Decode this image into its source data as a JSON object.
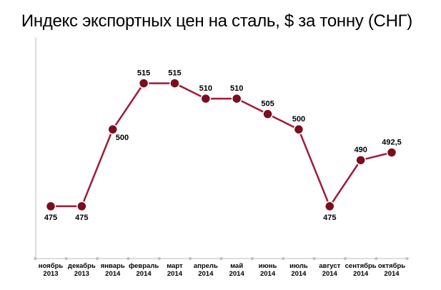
{
  "chart_data": {
    "type": "line",
    "title": "Индекс экспортных цен на сталь, $ за тонну (СНГ)",
    "categories": [
      [
        "ноябрь",
        "2013"
      ],
      [
        "декабрь",
        "2013"
      ],
      [
        "январь",
        "2014"
      ],
      [
        "февраль",
        "2014"
      ],
      [
        "март",
        "2014"
      ],
      [
        "апрель",
        "2014"
      ],
      [
        "май",
        "2014"
      ],
      [
        "июнь",
        "2014"
      ],
      [
        "июль",
        "2014"
      ],
      [
        "август",
        "2014"
      ],
      [
        "сентябрь",
        "2014"
      ],
      [
        "октябрь",
        "2014"
      ]
    ],
    "values": [
      475,
      475,
      500,
      515,
      515,
      510,
      510,
      505,
      500,
      475,
      490,
      492.5
    ],
    "data_labels": [
      "475",
      "475",
      "500",
      "515",
      "515",
      "510",
      "510",
      "505",
      "500",
      "475",
      "490",
      "492,5"
    ],
    "label_positions": [
      "below",
      "below",
      "below-right",
      "above",
      "above",
      "above",
      "above",
      "above",
      "above",
      "below",
      "above",
      "above"
    ],
    "ylim": [
      458,
      530
    ],
    "grid": false,
    "colors": {
      "line": "#a01a3a",
      "marker": "#7a0d1e",
      "axis": "#bdbdbd"
    }
  }
}
